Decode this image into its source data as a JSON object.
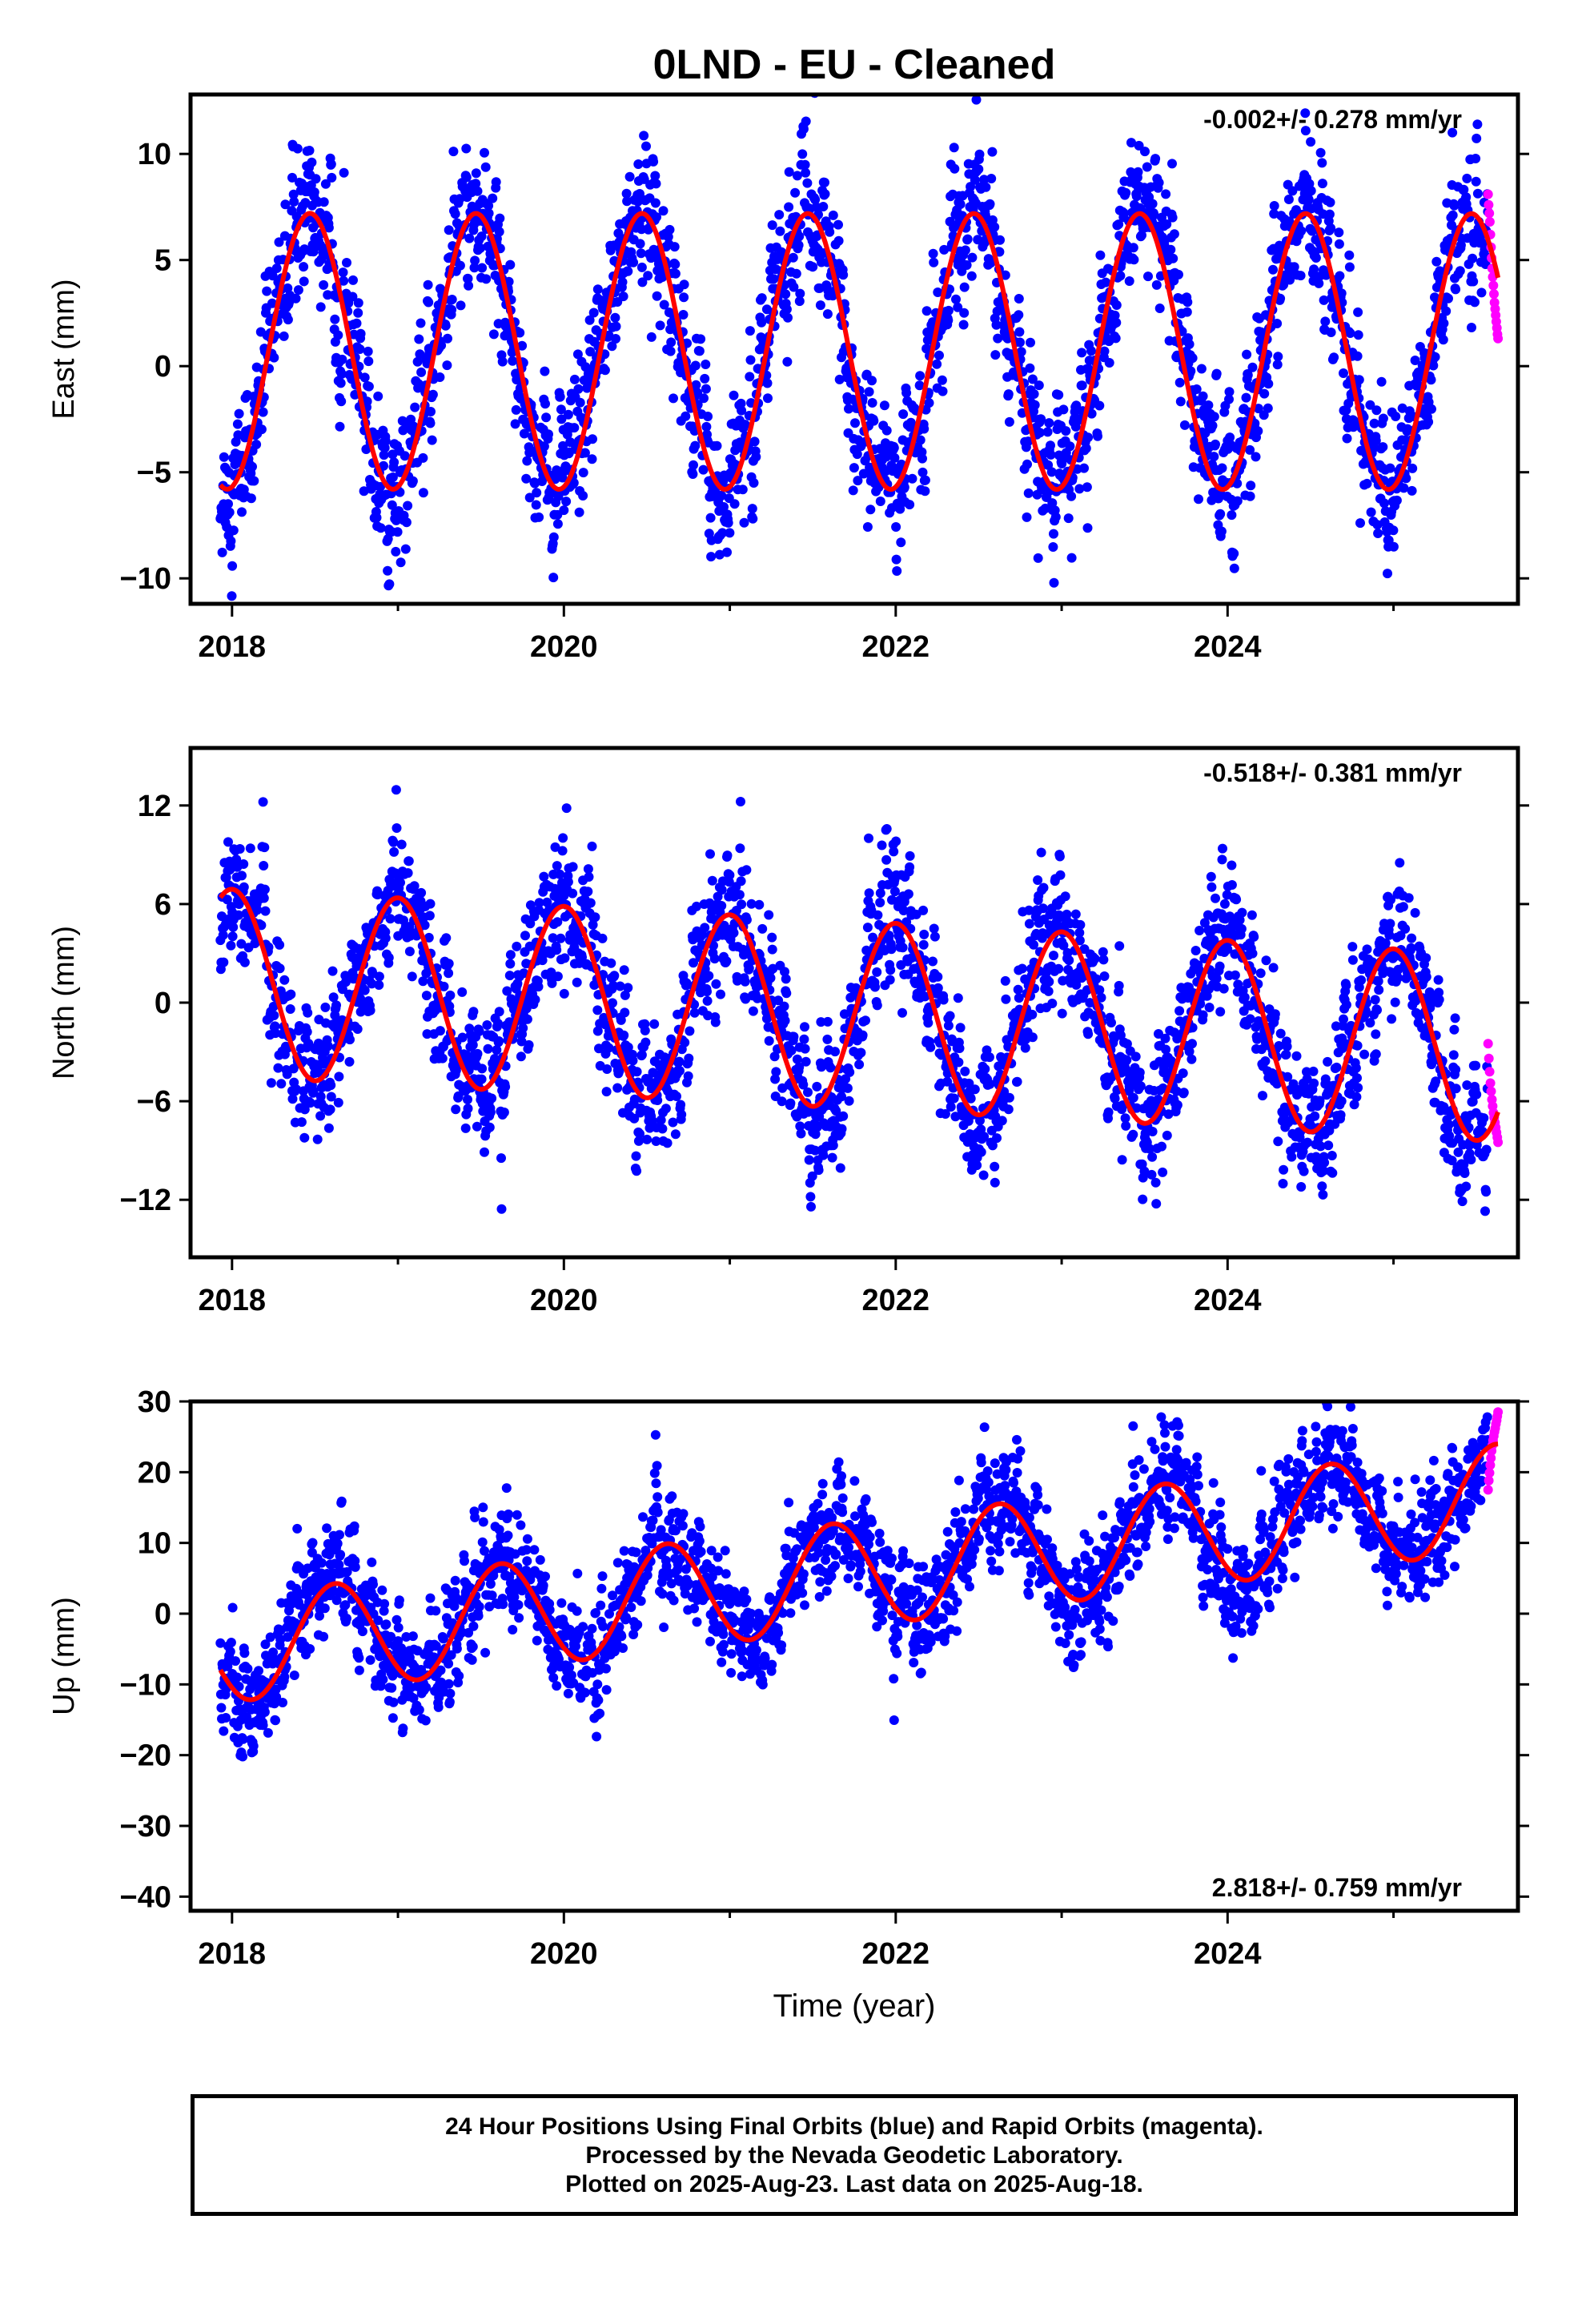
{
  "page": {
    "title": "0LND  - EU - Cleaned",
    "xlabel": "Time (year)",
    "footer": [
      "24 Hour Positions Using Final Orbits (blue) and Rapid Orbits (magenta).",
      "Processed by the Nevada Geodetic Laboratory.",
      "Plotted on 2025-Aug-23. Last data on 2025-Aug-18."
    ]
  },
  "colors": {
    "final_orbits": "#0000ff",
    "rapid_orbits": "#ff00ff",
    "model_fit": "#ff0000",
    "frame": "#000000"
  },
  "chart_data": [
    {
      "type": "scatter",
      "component": "east",
      "ylabel": "East (mm)",
      "rate_text": "-0.002+/- 0.278 mm/yr",
      "rate_position": "top-right",
      "xlim": [
        2017.75,
        2025.75
      ],
      "ylim": [
        -11.2,
        12.8
      ],
      "xticks": [
        2018,
        2020,
        2022,
        2024
      ],
      "yticks": [
        -10,
        -5,
        0,
        5,
        10
      ],
      "grid": false,
      "model": {
        "start": 2017.93,
        "end": 2025.63,
        "offset": 0.7,
        "trend": -0.002,
        "annual_amplitude": 6.5,
        "annual_peak": 2018.47,
        "semiannual_amplitude": 0.0,
        "semiannual_peak": 2018.0
      },
      "scatter_sd": 1.8,
      "rapid_orbits": {
        "start": 2025.57,
        "end": 2025.63,
        "values": [
          8.1,
          7.6,
          7.2,
          6.8,
          6.2,
          5.6,
          5.1,
          4.6,
          4.2,
          3.8,
          3.4,
          3.0,
          2.7,
          2.4,
          2.1,
          1.8,
          1.5,
          1.3
        ]
      }
    },
    {
      "type": "scatter",
      "component": "north",
      "ylabel": "North (mm)",
      "rate_text": "-0.518+/- 0.381 mm/yr",
      "rate_position": "top-right",
      "xlim": [
        2017.75,
        2025.75
      ],
      "ylim": [
        -15.5,
        15.5
      ],
      "xticks": [
        2018,
        2020,
        2022,
        2024
      ],
      "yticks": [
        -12,
        -6,
        0,
        6,
        12
      ],
      "grid": false,
      "model": {
        "start": 2017.93,
        "end": 2025.63,
        "offset": 1.2,
        "trend": -0.518,
        "annual_amplitude": 5.7,
        "annual_peak": 2018.0,
        "semiannual_amplitude": 0.0,
        "semiannual_peak": 2018.0
      },
      "scatter_sd": 2.2,
      "rapid_orbits": {
        "start": 2025.57,
        "end": 2025.63,
        "values": [
          -2.5,
          -3.4,
          -4.2,
          -4.9,
          -5.4,
          -5.9,
          -6.3,
          -6.7,
          -7.0,
          -7.3,
          -7.6,
          -7.9,
          -8.2,
          -8.5
        ]
      }
    },
    {
      "type": "scatter",
      "component": "up",
      "ylabel": "Up (mm)",
      "rate_text": "2.818+/- 0.759 mm/yr",
      "rate_position": "bottom-right",
      "xlim": [
        2017.75,
        2025.75
      ],
      "ylim": [
        -42,
        30
      ],
      "xticks": [
        2018,
        2020,
        2022,
        2024
      ],
      "yticks": [
        -40,
        -30,
        -20,
        -10,
        0,
        10,
        20,
        30
      ],
      "grid": false,
      "model": {
        "start": 2017.93,
        "end": 2025.63,
        "offset": -5.0,
        "trend": 2.818,
        "annual_amplitude": 7.5,
        "annual_peak": 2018.62,
        "semiannual_amplitude": 0.0,
        "semiannual_peak": 2018.0
      },
      "scatter_sd": 4.0,
      "rapid_orbits": {
        "start": 2025.57,
        "end": 2025.63,
        "values": [
          17.5,
          18.8,
          19.9,
          21.0,
          22.0,
          23.0,
          23.8,
          24.5,
          25.1,
          25.7,
          26.2,
          26.8,
          27.3,
          27.9,
          28.5
        ]
      }
    }
  ]
}
